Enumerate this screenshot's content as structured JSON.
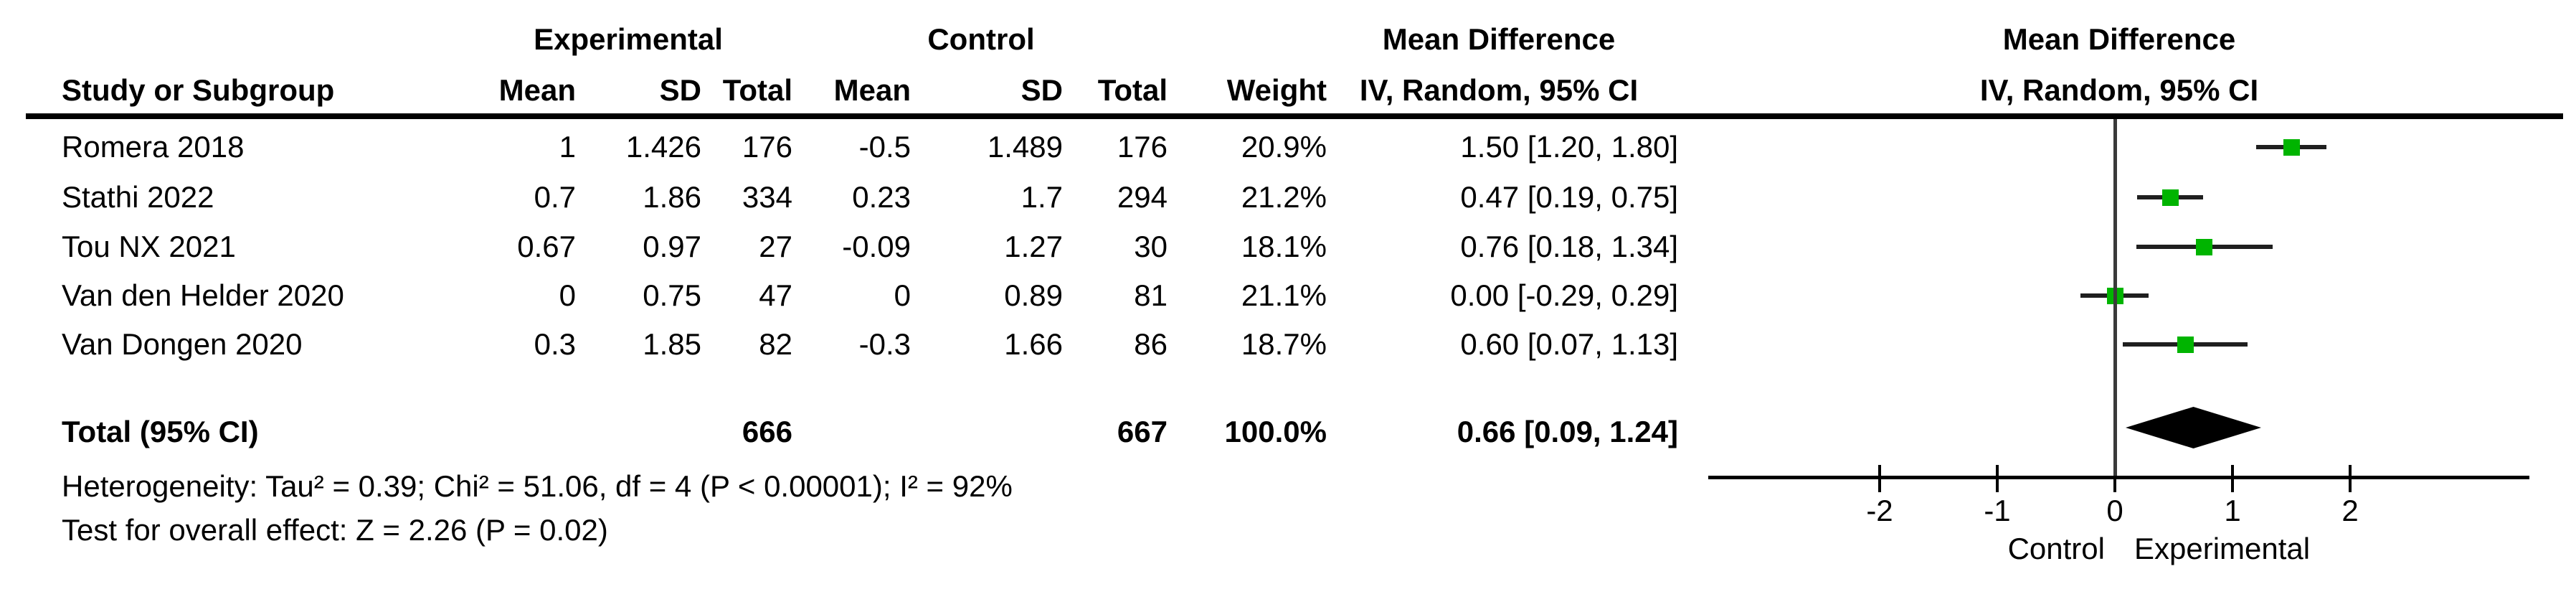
{
  "chart_data": {
    "type": "forest",
    "effect_label": "Mean Difference",
    "model_label": "IV, Random, 95% CI",
    "group_headers": {
      "experimental": "Experimental",
      "control": "Control"
    },
    "column_headers": {
      "study": "Study or Subgroup",
      "mean": "Mean",
      "sd": "SD",
      "total": "Total",
      "weight": "Weight"
    },
    "studies": [
      {
        "name": "Romera 2018",
        "exp": {
          "mean": "1",
          "sd": "1.426",
          "total": "176"
        },
        "ctrl": {
          "mean": "-0.5",
          "sd": "1.489",
          "total": "176"
        },
        "weight": "20.9%",
        "ci_label": "1.50 [1.20, 1.80]",
        "md": 1.5,
        "ci_low": 1.2,
        "ci_high": 1.8
      },
      {
        "name": "Stathi 2022",
        "exp": {
          "mean": "0.7",
          "sd": "1.86",
          "total": "334"
        },
        "ctrl": {
          "mean": "0.23",
          "sd": "1.7",
          "total": "294"
        },
        "weight": "21.2%",
        "ci_label": "0.47 [0.19, 0.75]",
        "md": 0.47,
        "ci_low": 0.19,
        "ci_high": 0.75
      },
      {
        "name": "Tou NX 2021",
        "exp": {
          "mean": "0.67",
          "sd": "0.97",
          "total": "27"
        },
        "ctrl": {
          "mean": "-0.09",
          "sd": "1.27",
          "total": "30"
        },
        "weight": "18.1%",
        "ci_label": "0.76 [0.18, 1.34]",
        "md": 0.76,
        "ci_low": 0.18,
        "ci_high": 1.34
      },
      {
        "name": "Van den Helder 2020",
        "exp": {
          "mean": "0",
          "sd": "0.75",
          "total": "47"
        },
        "ctrl": {
          "mean": "0",
          "sd": "0.89",
          "total": "81"
        },
        "weight": "21.1%",
        "ci_label": "0.00 [-0.29, 0.29]",
        "md": 0.0,
        "ci_low": -0.29,
        "ci_high": 0.29
      },
      {
        "name": "Van Dongen 2020",
        "exp": {
          "mean": "0.3",
          "sd": "1.85",
          "total": "82"
        },
        "ctrl": {
          "mean": "-0.3",
          "sd": "1.66",
          "total": "86"
        },
        "weight": "18.7%",
        "ci_label": "0.60 [0.07, 1.13]",
        "md": 0.6,
        "ci_low": 0.07,
        "ci_high": 1.13
      }
    ],
    "total": {
      "label": "Total (95% CI)",
      "exp_total": "666",
      "ctrl_total": "667",
      "weight": "100.0%",
      "ci_label": "0.66 [0.09, 1.24]",
      "md": 0.66,
      "ci_low": 0.09,
      "ci_high": 1.24
    },
    "footnotes": {
      "heterogeneity": "Heterogeneity: Tau² = 0.39; Chi² = 51.06, df = 4 (P < 0.00001); I² = 92%",
      "overall_effect": "Test for overall effect: Z = 2.26 (P = 0.02)"
    },
    "axis": {
      "ticks": [
        "-2",
        "-1",
        "0",
        "1",
        "2"
      ],
      "tick_values": [
        -2,
        -1,
        0,
        1,
        2
      ],
      "left_label": "Control",
      "right_label": "Experimental"
    },
    "colors": {
      "square": "#00b400",
      "diamond": "#000000",
      "ci_line": "#1f1f1f",
      "zero_line": "#3a3a3a",
      "axis": "#000000"
    }
  }
}
